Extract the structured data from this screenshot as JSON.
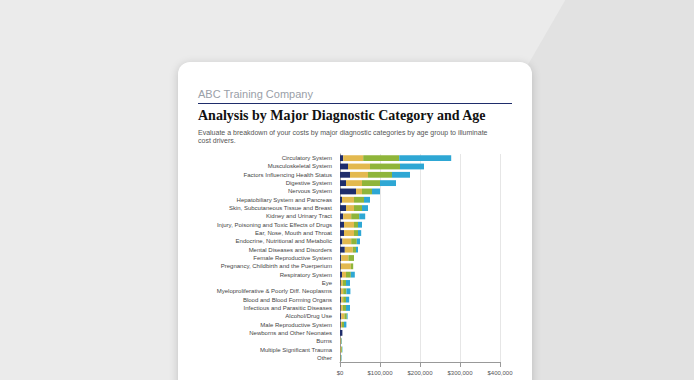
{
  "header": "ABC Training Company",
  "chart_data": {
    "type": "bar",
    "orientation": "horizontal",
    "stacked": true,
    "grid": true,
    "title": "Analysis by Major Diagnostic Category and Age",
    "subtitle": "Evaluate a breakdown of your costs by major diagnostic categories by age group to illuminate cost drivers.",
    "categories": [
      "Circulatory System",
      "Musculoskeletal System",
      "Factors Influencing Health Status",
      "Digestive System",
      "Nervous System",
      "Hepatobiliary System and Pancreas",
      "Skin, Subcutaneous Tissue and Breast",
      "Kidney and Urinary Tract",
      "Injury, Poisoning and Toxic Effects of Drugs",
      "Ear, Nose, Mouth and Throat",
      "Endocrine, Nutritional and Metabolic",
      "Mental Diseases and Disorders",
      "Female Reproductive System",
      "Pregnancy, Childbirth and the Puerperium",
      "Respiratory System",
      "Eye",
      "Myeloproliferative & Poorly Diff. Neoplasms",
      "Blood and Blood Forming Organs",
      "Infectious and Parasitic Diseases",
      "Alcohol/Drug Use",
      "Male Reproductive System",
      "Newborns and Other Neonates",
      "Burns",
      "Multiple Significant Trauma",
      "Other"
    ],
    "series": [
      {
        "color": "#1f2d6b",
        "values": [
          8000,
          20000,
          25000,
          15000,
          40000,
          5000,
          15000,
          8000,
          10000,
          10000,
          6000,
          12000,
          3000,
          2000,
          5000,
          2000,
          2000,
          3000,
          2000,
          3000,
          2000,
          6000,
          1000,
          1000,
          1000
        ]
      },
      {
        "color": "#e3b94f",
        "values": [
          50000,
          55000,
          45000,
          40000,
          15000,
          30000,
          20000,
          20000,
          25000,
          25000,
          22000,
          20000,
          18000,
          25000,
          10000,
          5000,
          6000,
          5000,
          5000,
          8000,
          3000,
          0,
          2000,
          2000,
          1000
        ]
      },
      {
        "color": "#8fb53a",
        "values": [
          90000,
          75000,
          60000,
          45000,
          25000,
          25000,
          20000,
          20000,
          10000,
          10000,
          14000,
          8000,
          14000,
          6000,
          12000,
          8000,
          8000,
          7000,
          8000,
          6000,
          5000,
          0,
          1000,
          2000,
          1000
        ]
      },
      {
        "color": "#2ea7d4",
        "values": [
          130000,
          60000,
          45000,
          40000,
          20000,
          15000,
          15000,
          15000,
          10000,
          8000,
          8000,
          5000,
          0,
          0,
          10000,
          10000,
          10000,
          8000,
          10000,
          2000,
          6000,
          0,
          1000,
          1000,
          1000
        ]
      }
    ],
    "xlim": [
      0,
      400000
    ],
    "xticks": [
      {
        "value": 0,
        "label": "$0"
      },
      {
        "value": 100000,
        "label": "$100,000"
      },
      {
        "value": 200000,
        "label": "$200,000"
      },
      {
        "value": 300000,
        "label": "$300,000"
      },
      {
        "value": 400000,
        "label": "$400,000"
      }
    ]
  }
}
